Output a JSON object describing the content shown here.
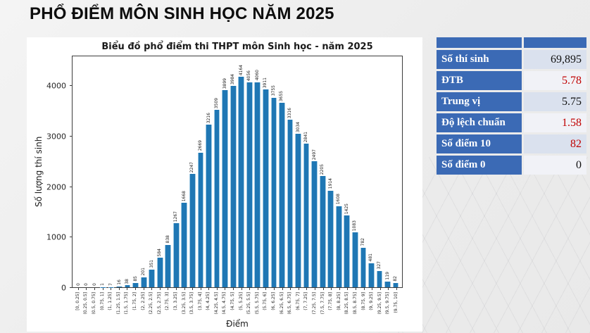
{
  "page_title": "PHỔ ĐIỂM MÔN SINH HỌC NĂM 2025",
  "chart_data": {
    "type": "bar",
    "title": "Biểu đồ phổ điểm thi THPT môn Sinh học - năm 2025",
    "xlabel": "Điểm",
    "ylabel": "Số lượng thí sinh",
    "ylim": [
      0,
      4600
    ],
    "yticks": [
      0,
      1000,
      2000,
      3000,
      4000
    ],
    "grid": false,
    "legend": "none",
    "bar_color": "#1f77b4",
    "categories": [
      "[0, 0.25]",
      "(0.25, 0.5]",
      "(0.5, 0.75]",
      "(0.75, 1]",
      "(1, 1.25]",
      "(1.25, 1.5]",
      "(1.5, 1.75]",
      "(1.75, 2]",
      "(2, 2.25]",
      "(2.25, 2.5]",
      "(2.5, 2.75]",
      "(2.75, 3]",
      "(3, 3.25]",
      "(3.25, 3.5]",
      "(3.5, 3.75]",
      "(3.75, 4]",
      "(4, 4.25]",
      "(4.25, 4.5]",
      "(4.5, 4.75]",
      "(4.75, 5]",
      "(5, 5.25]",
      "(5.25, 5.5]",
      "(5.5, 5.75]",
      "(5.75, 6]",
      "(6, 6.25]",
      "(6.25, 6.5]",
      "(6.5, 6.75]",
      "(6.75, 7]",
      "(7, 7.25]",
      "(7.25, 7.5]",
      "(7.5, 7.75]",
      "(7.75, 8]",
      "(8, 8.25]",
      "(8.25, 8.5]",
      "(8.5, 8.75]",
      "(8.75, 9]",
      "(9, 9.25]",
      "(9.25, 9.5]",
      "(9.5, 9.75]",
      "(9.75, 10]"
    ],
    "values": [
      0,
      0,
      0,
      1,
      7,
      16,
      38,
      85,
      201,
      351,
      584,
      838,
      1267,
      1668,
      2247,
      2669,
      3216,
      3509,
      3899,
      3984,
      4164,
      4056,
      4060,
      3911,
      3755,
      3655,
      3316,
      3034,
      2841,
      2497,
      2205,
      1914,
      1608,
      1425,
      1083,
      782,
      481,
      327,
      119,
      82
    ]
  },
  "stats_table": {
    "header_color": "#3b6ab5",
    "value_color_normal": "#111111",
    "value_color_highlight": "#c00000",
    "row_bg_odd": "#dae1ee",
    "row_bg_even": "#f1f2f7",
    "rows": [
      {
        "label": "Số thí sinh",
        "value": "69,895",
        "highlight": false
      },
      {
        "label": "ĐTB",
        "value": "5.78",
        "highlight": true
      },
      {
        "label": "Trung vị",
        "value": "5.75",
        "highlight": false
      },
      {
        "label": "Độ lệch chuẩn",
        "value": "1.58",
        "highlight": true
      },
      {
        "label": "Số điểm 10",
        "value": "82",
        "highlight": true
      },
      {
        "label": "Số điểm 0",
        "value": "0",
        "highlight": false
      }
    ]
  }
}
